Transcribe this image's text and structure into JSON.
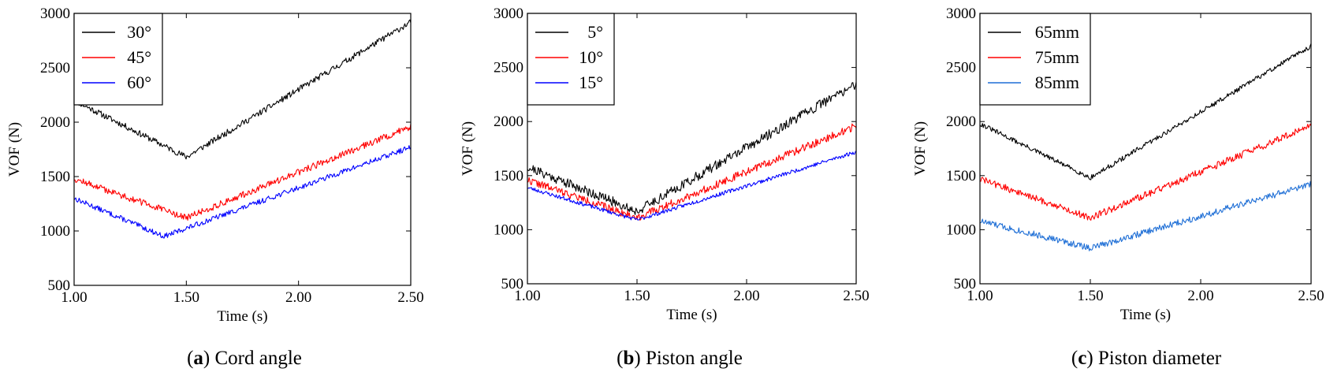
{
  "chart_data": [
    {
      "type": "line",
      "caption": {
        "label": "a",
        "open": "(",
        "close": ")",
        "text": " Cord angle"
      },
      "xlabel": "Time (s)",
      "ylabel": "VOF (N)",
      "xlim": [
        1.0,
        2.5
      ],
      "ylim": [
        500,
        3000
      ],
      "xticks": [
        1.0,
        1.5,
        2.0,
        2.5
      ],
      "xtick_labels": [
        "1.00",
        "1.50",
        "2.00",
        "2.50"
      ],
      "yticks": [
        500,
        1000,
        1500,
        2000,
        2500,
        3000
      ],
      "ytick_labels": [
        "500",
        "1000",
        "1500",
        "2000",
        "2500",
        "3000"
      ],
      "legend_position": "top-left",
      "series": [
        {
          "name": "30°",
          "color": "#000000",
          "x": [
            1.0,
            1.5,
            2.5
          ],
          "y": [
            2200,
            1680,
            2920
          ],
          "noise": 28,
          "seed": 11
        },
        {
          "name": "45°",
          "color": "#ff0000",
          "x": [
            1.0,
            1.5,
            2.5
          ],
          "y": [
            1480,
            1120,
            1960
          ],
          "noise": 30,
          "seed": 12
        },
        {
          "name": "60°",
          "color": "#0000ff",
          "x": [
            1.0,
            1.4,
            2.5
          ],
          "y": [
            1300,
            950,
            1770
          ],
          "noise": 24,
          "seed": 13
        }
      ]
    },
    {
      "type": "line",
      "caption": {
        "label": "b",
        "open": "(",
        "close": ")",
        "text": " Piston angle"
      },
      "xlabel": "Time (s)",
      "ylabel": "VOF (N)",
      "xlim": [
        1.0,
        2.5
      ],
      "ylim": [
        500,
        3000
      ],
      "xticks": [
        1.0,
        1.5,
        2.0,
        2.5
      ],
      "xtick_labels": [
        "1.00",
        "1.50",
        "2.00",
        "2.50"
      ],
      "yticks": [
        500,
        1000,
        1500,
        2000,
        2500,
        3000
      ],
      "ytick_labels": [
        "500",
        "1000",
        "1500",
        "2000",
        "2500",
        "3000"
      ],
      "legend_position": "top-left",
      "series": [
        {
          "name": "5°",
          "color": "#000000",
          "x": [
            1.0,
            1.5,
            2.5
          ],
          "y": [
            1580,
            1170,
            2350
          ],
          "noise": 45,
          "seed": 21
        },
        {
          "name": "10°",
          "color": "#ff0000",
          "x": [
            1.0,
            1.5,
            2.5
          ],
          "y": [
            1460,
            1110,
            1960
          ],
          "noise": 35,
          "seed": 22
        },
        {
          "name": "15°",
          "color": "#0000ff",
          "x": [
            1.0,
            1.5,
            2.5
          ],
          "y": [
            1390,
            1090,
            1720
          ],
          "noise": 18,
          "seed": 23
        }
      ]
    },
    {
      "type": "line",
      "caption": {
        "label": "c",
        "open": "(",
        "close": ")",
        "text": " Piston diameter"
      },
      "xlabel": "Time (s)",
      "ylabel": "VOF (N)",
      "xlim": [
        1.0,
        2.5
      ],
      "ylim": [
        500,
        3000
      ],
      "xticks": [
        1.0,
        1.5,
        2.0,
        2.5
      ],
      "xtick_labels": [
        "1.00",
        "1.50",
        "2.00",
        "2.50"
      ],
      "yticks": [
        500,
        1000,
        1500,
        2000,
        2500,
        3000
      ],
      "ytick_labels": [
        "500",
        "1000",
        "1500",
        "2000",
        "2500",
        "3000"
      ],
      "legend_position": "top-left",
      "series": [
        {
          "name": "65mm",
          "color": "#000000",
          "x": [
            1.0,
            1.5,
            2.5
          ],
          "y": [
            1980,
            1480,
            2700
          ],
          "noise": 22,
          "seed": 31
        },
        {
          "name": "75mm",
          "color": "#ff0000",
          "x": [
            1.0,
            1.5,
            2.5
          ],
          "y": [
            1470,
            1110,
            1960
          ],
          "noise": 32,
          "seed": 32
        },
        {
          "name": "85mm",
          "color": "#1f6fd6",
          "x": [
            1.0,
            1.5,
            2.5
          ],
          "y": [
            1080,
            830,
            1420
          ],
          "noise": 30,
          "seed": 33
        }
      ]
    }
  ]
}
